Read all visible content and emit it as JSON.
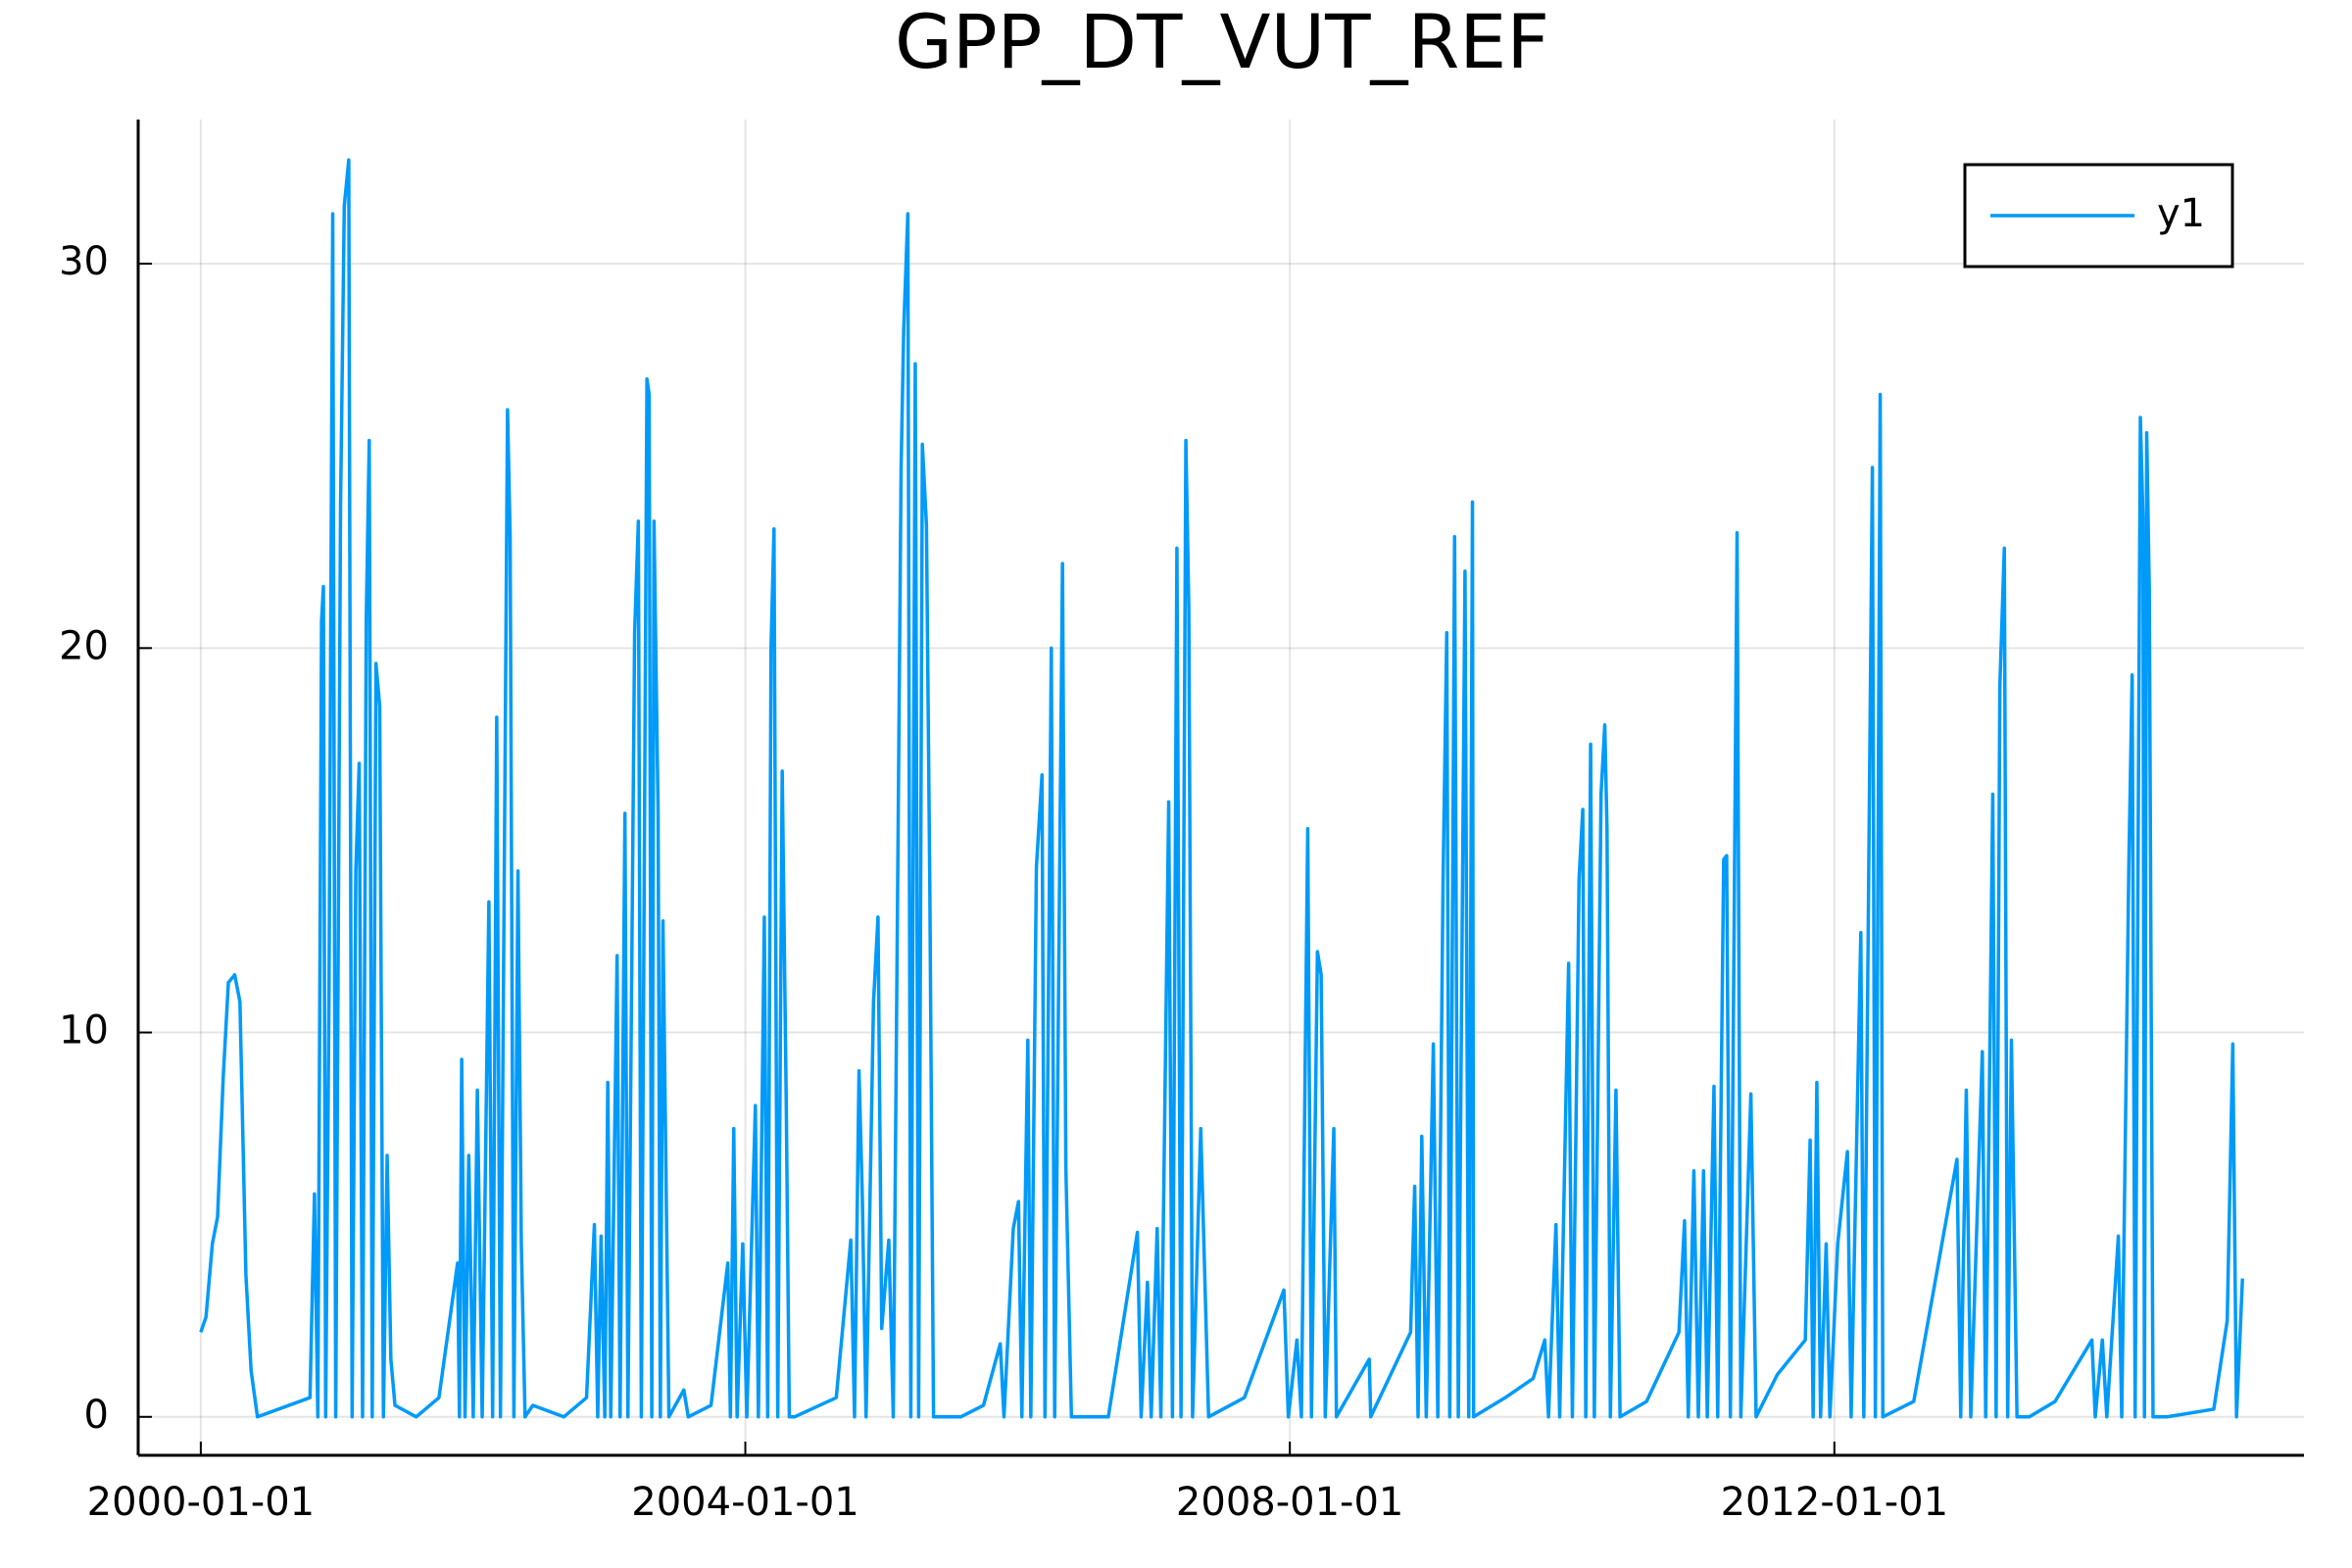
{
  "chart_data": {
    "type": "line",
    "title": "GPP_DT_VUT_REF",
    "x": [
      "2000-01-01",
      "2000-01-15",
      "2000-02-01",
      "2000-02-15",
      "2000-03-01",
      "2000-03-15",
      "2000-04-01",
      "2000-04-15",
      "2000-05-01",
      "2000-05-15",
      "2000-06-01",
      "2000-10-20",
      "2000-11-01",
      "2000-11-10",
      "2000-11-20",
      "2000-11-25",
      "2000-12-01",
      "2000-12-10",
      "2000-12-20",
      "2000-12-28",
      "2001-01-10",
      "2001-01-20",
      "2001-02-01",
      "2001-02-10",
      "2001-02-20",
      "2001-03-01",
      "2001-03-10",
      "2001-03-20",
      "2001-03-28",
      "2001-04-05",
      "2001-04-15",
      "2001-04-25",
      "2001-05-05",
      "2001-05-15",
      "2001-05-25",
      "2001-06-05",
      "2001-08-01",
      "2001-10-01",
      "2001-11-20",
      "2001-11-25",
      "2001-12-01",
      "2001-12-10",
      "2001-12-20",
      "2002-01-01",
      "2002-01-12",
      "2002-01-25",
      "2002-02-12",
      "2002-02-22",
      "2002-03-05",
      "2002-03-15",
      "2002-04-03",
      "2002-04-10",
      "2002-04-20",
      "2002-05-01",
      "2002-05-10",
      "2002-05-20",
      "2002-06-10",
      "2002-09-01",
      "2002-11-01",
      "2002-11-22",
      "2002-12-01",
      "2002-12-10",
      "2002-12-20",
      "2002-12-28",
      "2003-01-05",
      "2003-01-22",
      "2003-01-30",
      "2003-02-12",
      "2003-02-20",
      "2003-03-10",
      "2003-03-20",
      "2003-03-28",
      "2003-04-12",
      "2003-04-18",
      "2003-04-25",
      "2003-05-01",
      "2003-05-12",
      "2003-05-18",
      "2003-05-25",
      "2003-06-10",
      "2003-07-20",
      "2003-08-01",
      "2003-10-01",
      "2003-11-15",
      "2003-11-22",
      "2003-12-01",
      "2003-12-10",
      "2003-12-25",
      "2004-01-05",
      "2004-01-28",
      "2004-02-05",
      "2004-02-21",
      "2004-03-01",
      "2004-03-10",
      "2004-03-18",
      "2004-03-28",
      "2004-04-09",
      "2004-04-20",
      "2004-04-28",
      "2004-05-12",
      "2004-09-01",
      "2004-10-10",
      "2004-10-20",
      "2004-11-01",
      "2004-11-10",
      "2004-11-20",
      "2004-12-10",
      "2004-12-22",
      "2005-01-01",
      "2005-01-20",
      "2005-02-01",
      "2005-02-22",
      "2005-03-01",
      "2005-03-12",
      "2005-03-20",
      "2005-04-01",
      "2005-04-10",
      "2005-04-20",
      "2005-05-01",
      "2005-05-10",
      "2005-05-20",
      "2005-06-12",
      "2005-08-01",
      "2005-10-01",
      "2005-11-15",
      "2005-11-25",
      "2005-12-20",
      "2006-01-03",
      "2006-01-12",
      "2006-01-28",
      "2006-02-05",
      "2006-02-20",
      "2006-03-07",
      "2006-03-15",
      "2006-04-01",
      "2006-04-10",
      "2006-05-01",
      "2006-05-10",
      "2006-05-25",
      "2006-09-01",
      "2006-11-18",
      "2006-11-28",
      "2006-12-15",
      "2006-12-25",
      "2007-01-10",
      "2007-01-20",
      "2007-02-10",
      "2007-02-20",
      "2007-03-04",
      "2007-03-15",
      "2007-03-28",
      "2007-04-05",
      "2007-04-15",
      "2007-05-07",
      "2007-05-28",
      "2007-09-01",
      "2007-12-16",
      "2007-12-28",
      "2008-01-20",
      "2008-02-01",
      "2008-02-18",
      "2008-02-28",
      "2008-03-15",
      "2008-03-25",
      "2008-04-05",
      "2008-04-28",
      "2008-05-05",
      "2008-08-01",
      "2008-08-05",
      "2008-11-20",
      "2008-12-01",
      "2008-12-10",
      "2008-12-20",
      "2009-01-01",
      "2009-01-20",
      "2009-02-01",
      "2009-02-15",
      "2009-02-25",
      "2009-03-05",
      "2009-03-18",
      "2009-03-28",
      "2009-04-15",
      "2009-04-25",
      "2009-05-05",
      "2009-05-08",
      "2009-08-01",
      "2009-10-15",
      "2009-11-15",
      "2009-11-25",
      "2009-12-15",
      "2009-12-25",
      "2010-01-18",
      "2010-01-28",
      "2010-02-15",
      "2010-02-25",
      "2010-03-05",
      "2010-03-18",
      "2010-03-28",
      "2010-04-15",
      "2010-04-25",
      "2010-05-01",
      "2010-05-10",
      "2010-05-25",
      "2010-06-05",
      "2010-08-15",
      "2010-11-10",
      "2010-11-25",
      "2010-12-05",
      "2010-12-20",
      "2011-01-01",
      "2011-01-15",
      "2011-01-25",
      "2011-02-12",
      "2011-02-22",
      "2011-03-10",
      "2011-03-18",
      "2011-03-28",
      "2011-04-15",
      "2011-04-25",
      "2011-05-22",
      "2011-06-05",
      "2011-08-01",
      "2011-10-15",
      "2011-10-28",
      "2011-11-05",
      "2011-11-15",
      "2011-11-25",
      "2011-12-10",
      "2011-12-20",
      "2012-01-10",
      "2012-02-05",
      "2012-02-15",
      "2012-03-12",
      "2012-03-20",
      "2012-04-12",
      "2012-04-20",
      "2012-05-03",
      "2012-05-10",
      "2012-08-01",
      "2012-11-25",
      "2012-12-05",
      "2012-12-20",
      "2013-01-01",
      "2013-02-01",
      "2013-02-10",
      "2013-03-01",
      "2013-03-10",
      "2013-03-20",
      "2013-04-01",
      "2013-04-10",
      "2013-04-20",
      "2013-05-05",
      "2013-06-07",
      "2013-08-15",
      "2013-11-22",
      "2013-12-01",
      "2013-12-20",
      "2014-01-01",
      "2014-02-01",
      "2014-02-10",
      "2014-03-01",
      "2014-03-10",
      "2014-03-18",
      "2014-04-01",
      "2014-04-08",
      "2014-04-12",
      "2014-04-18",
      "2014-04-25",
      "2014-05-05",
      "2014-06-12",
      "2014-10-15",
      "2014-11-20",
      "2014-12-05",
      "2014-12-15",
      "2014-12-31"
    ],
    "series": [
      {
        "name": "y1",
        "color": "#009af9",
        "values": [
          2.2,
          2.6,
          4.5,
          5.2,
          8.8,
          11.3,
          11.5,
          10.8,
          3.7,
          1.2,
          0,
          0.5,
          5.8,
          0,
          20.7,
          21.6,
          0,
          11,
          31.3,
          0,
          23.7,
          31.5,
          32.7,
          0,
          14.2,
          17,
          0,
          20.8,
          25.4,
          0,
          19.6,
          18.5,
          0,
          6.8,
          1.5,
          0.3,
          0,
          0.5,
          4,
          0,
          9.3,
          0,
          6.8,
          0,
          8.5,
          0,
          13.4,
          0,
          18.2,
          0,
          26.2,
          22.9,
          0,
          14.2,
          4.5,
          0,
          0.3,
          0,
          0.5,
          5,
          0,
          4.7,
          0,
          8.7,
          0,
          12,
          0,
          15.7,
          0,
          20.4,
          23.3,
          0,
          27,
          26.6,
          0,
          23.3,
          15.7,
          0,
          12.9,
          0,
          0.7,
          0,
          0.3,
          4,
          0,
          7.5,
          0,
          4.5,
          0,
          8.1,
          0,
          13,
          0,
          20,
          23.1,
          0,
          16.8,
          8,
          0,
          0,
          0.5,
          4.6,
          0,
          9,
          5.7,
          0,
          10.8,
          13,
          2.3,
          4.6,
          0,
          24.7,
          28.3,
          31.3,
          0,
          27.4,
          0,
          25.3,
          23.2,
          13.8,
          0,
          0,
          0,
          0.3,
          1.9,
          0,
          4.9,
          5.6,
          0,
          9.8,
          0,
          14.3,
          16.7,
          0,
          20,
          0,
          22.2,
          6.5,
          0,
          0,
          4.8,
          0,
          3.5,
          0,
          4.9,
          0,
          16,
          0,
          22.6,
          0,
          25.4,
          21,
          0,
          7.5,
          0,
          0.5,
          3.3,
          0,
          2,
          0,
          15.3,
          0,
          12.1,
          11.5,
          0,
          7.5,
          0,
          1.5,
          0,
          2.2,
          6,
          0,
          7.3,
          0,
          9.7,
          0,
          13.9,
          20.4,
          0,
          22.9,
          0,
          22,
          0,
          23.8,
          0,
          0.5,
          1,
          2,
          0,
          5,
          0,
          11.8,
          0,
          14,
          15.8,
          0,
          17.5,
          0,
          16.2,
          18,
          15.3,
          0,
          8.5,
          0,
          0.4,
          2.2,
          5.1,
          0,
          6.4,
          0,
          6.4,
          0,
          8.6,
          0,
          14.5,
          14.6,
          0,
          23,
          0,
          8.4,
          0,
          1.1,
          2,
          7.2,
          0,
          8.7,
          0,
          4.5,
          0,
          4.5,
          6.9,
          0,
          12.6,
          0,
          24.7,
          0,
          26.6,
          0,
          0.4,
          6.7,
          0,
          8.5,
          0,
          9.5,
          0,
          16.2,
          0,
          19,
          22.6,
          0,
          9.8,
          0,
          0,
          0.4,
          2,
          0,
          2,
          0,
          4.7,
          0,
          14.3,
          19.3,
          0,
          26,
          23.4,
          0,
          25.6,
          21.5,
          0,
          0,
          0.2,
          2.5,
          9.7,
          0,
          3.6
        ]
      }
    ],
    "xlim": [
      "1999-07-17",
      "2015-06-14"
    ],
    "xticks": [
      "2000-01-01",
      "2004-01-01",
      "2008-01-01",
      "2012-01-01"
    ],
    "ylim": [
      -1,
      33.75
    ],
    "yticks": [
      0,
      10,
      20,
      30
    ],
    "grid": true,
    "legend": "top-right"
  }
}
